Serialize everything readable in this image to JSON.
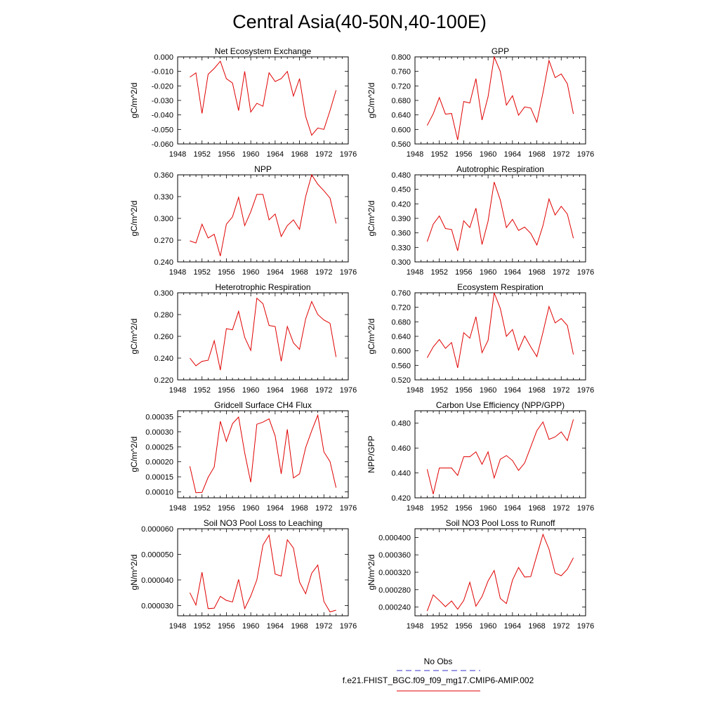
{
  "title": "Central Asia(40-50N,40-100E)",
  "x_ticks": [
    1948,
    1952,
    1956,
    1960,
    1964,
    1968,
    1972,
    1976
  ],
  "legend": [
    {
      "label": "No Obs",
      "color": "#3333cc",
      "dash": true
    },
    {
      "label": "f.e21.FHIST_BGC.f09_f09_mg17.CMIP6-AMIP.002",
      "color": "#e00000",
      "dash": false
    }
  ],
  "chart_data": [
    {
      "type": "line",
      "title": "Net Ecosystem Exchange",
      "ylabel": "gC/m^2/d",
      "xlim": [
        1948,
        1976
      ],
      "ylim": [
        -0.06,
        0.0
      ],
      "y_ticks": [
        "0.000",
        "-0.010",
        "-0.020",
        "-0.030",
        "-0.040",
        "-0.050",
        "-0.060"
      ],
      "y_tick_values": [
        0.0,
        -0.01,
        -0.02,
        -0.03,
        -0.04,
        -0.05,
        -0.06
      ],
      "series": [
        {
          "color": "#e00000",
          "x": [
            1950,
            1951,
            1952,
            1953,
            1954,
            1955,
            1956,
            1957,
            1958,
            1959,
            1960,
            1961,
            1962,
            1963,
            1964,
            1965,
            1966,
            1967,
            1968,
            1969,
            1970,
            1971,
            1972,
            1973,
            1974
          ],
          "y": [
            -0.014,
            -0.011,
            -0.039,
            -0.012,
            -0.008,
            -0.003,
            -0.015,
            -0.018,
            -0.037,
            -0.01,
            -0.038,
            -0.032,
            -0.034,
            -0.011,
            -0.017,
            -0.015,
            -0.01,
            -0.027,
            -0.015,
            -0.041,
            -0.054,
            -0.049,
            -0.05,
            -0.037,
            -0.023
          ]
        }
      ]
    },
    {
      "type": "line",
      "title": "GPP",
      "ylabel": "gC/m^2/d",
      "xlim": [
        1948,
        1976
      ],
      "ylim": [
        0.56,
        0.8
      ],
      "y_ticks": [
        "0.800",
        "0.760",
        "0.720",
        "0.680",
        "0.640",
        "0.600",
        "0.560"
      ],
      "y_tick_values": [
        0.8,
        0.76,
        0.72,
        0.68,
        0.64,
        0.6,
        0.56
      ],
      "series": [
        {
          "color": "#e00000",
          "x": [
            1950,
            1951,
            1952,
            1953,
            1954,
            1955,
            1956,
            1957,
            1958,
            1959,
            1960,
            1961,
            1962,
            1963,
            1964,
            1965,
            1966,
            1967,
            1968,
            1969,
            1970,
            1971,
            1972,
            1973,
            1974
          ],
          "y": [
            0.611,
            0.643,
            0.688,
            0.642,
            0.644,
            0.571,
            0.677,
            0.673,
            0.74,
            0.626,
            0.69,
            0.8,
            0.76,
            0.667,
            0.693,
            0.639,
            0.662,
            0.659,
            0.62,
            0.701,
            0.79,
            0.743,
            0.753,
            0.726,
            0.643
          ]
        }
      ]
    },
    {
      "type": "line",
      "title": "NPP",
      "ylabel": "gC/m^2/d",
      "xlim": [
        1948,
        1976
      ],
      "ylim": [
        0.24,
        0.36
      ],
      "y_ticks": [
        "0.360",
        "0.330",
        "0.300",
        "0.270",
        "0.240"
      ],
      "y_tick_values": [
        0.36,
        0.33,
        0.3,
        0.27,
        0.24
      ],
      "series": [
        {
          "color": "#e00000",
          "x": [
            1950,
            1951,
            1952,
            1953,
            1954,
            1955,
            1956,
            1957,
            1958,
            1959,
            1960,
            1961,
            1962,
            1963,
            1964,
            1965,
            1966,
            1967,
            1968,
            1969,
            1970,
            1971,
            1972,
            1973,
            1974
          ],
          "y": [
            0.269,
            0.266,
            0.292,
            0.273,
            0.278,
            0.248,
            0.292,
            0.302,
            0.329,
            0.29,
            0.309,
            0.333,
            0.333,
            0.298,
            0.306,
            0.275,
            0.29,
            0.298,
            0.285,
            0.33,
            0.36,
            0.347,
            0.338,
            0.328,
            0.293
          ]
        }
      ]
    },
    {
      "type": "line",
      "title": "Autotrophic Respiration",
      "ylabel": "gC/m^2/d",
      "xlim": [
        1948,
        1976
      ],
      "ylim": [
        0.3,
        0.48
      ],
      "y_ticks": [
        "0.480",
        "0.450",
        "0.420",
        "0.390",
        "0.360",
        "0.330",
        "0.300"
      ],
      "y_tick_values": [
        0.48,
        0.45,
        0.42,
        0.39,
        0.36,
        0.33,
        0.3
      ],
      "series": [
        {
          "color": "#e00000",
          "x": [
            1950,
            1951,
            1952,
            1953,
            1954,
            1955,
            1956,
            1957,
            1958,
            1959,
            1960,
            1961,
            1962,
            1963,
            1964,
            1965,
            1966,
            1967,
            1968,
            1969,
            1970,
            1971,
            1972,
            1973,
            1974
          ],
          "y": [
            0.342,
            0.378,
            0.395,
            0.369,
            0.367,
            0.323,
            0.385,
            0.371,
            0.411,
            0.336,
            0.384,
            0.465,
            0.428,
            0.371,
            0.388,
            0.365,
            0.372,
            0.359,
            0.335,
            0.375,
            0.43,
            0.397,
            0.415,
            0.399,
            0.349
          ]
        }
      ]
    },
    {
      "type": "line",
      "title": "Heterotrophic Respiration",
      "ylabel": "gC/m^2/d",
      "xlim": [
        1948,
        1976
      ],
      "ylim": [
        0.22,
        0.3
      ],
      "y_ticks": [
        "0.300",
        "0.280",
        "0.260",
        "0.240",
        "0.220"
      ],
      "y_tick_values": [
        0.3,
        0.28,
        0.26,
        0.24,
        0.22
      ],
      "series": [
        {
          "color": "#e00000",
          "x": [
            1950,
            1951,
            1952,
            1953,
            1954,
            1955,
            1956,
            1957,
            1958,
            1959,
            1960,
            1961,
            1962,
            1963,
            1964,
            1965,
            1966,
            1967,
            1968,
            1969,
            1970,
            1971,
            1972,
            1973,
            1974
          ],
          "y": [
            0.24,
            0.233,
            0.237,
            0.238,
            0.256,
            0.229,
            0.267,
            0.266,
            0.283,
            0.259,
            0.247,
            0.295,
            0.29,
            0.27,
            0.269,
            0.237,
            0.269,
            0.254,
            0.248,
            0.276,
            0.292,
            0.28,
            0.275,
            0.272,
            0.241
          ]
        }
      ]
    },
    {
      "type": "line",
      "title": "Ecosystem Respiration",
      "ylabel": "gC/m^2/d",
      "xlim": [
        1948,
        1976
      ],
      "ylim": [
        0.52,
        0.76
      ],
      "y_ticks": [
        "0.760",
        "0.720",
        "0.680",
        "0.640",
        "0.600",
        "0.560",
        "0.520"
      ],
      "y_tick_values": [
        0.76,
        0.72,
        0.68,
        0.64,
        0.6,
        0.56,
        0.52
      ],
      "series": [
        {
          "color": "#e00000",
          "x": [
            1950,
            1951,
            1952,
            1953,
            1954,
            1955,
            1956,
            1957,
            1958,
            1959,
            1960,
            1961,
            1962,
            1963,
            1964,
            1965,
            1966,
            1967,
            1968,
            1969,
            1970,
            1971,
            1972,
            1973,
            1974
          ],
          "y": [
            0.581,
            0.611,
            0.631,
            0.607,
            0.623,
            0.553,
            0.65,
            0.635,
            0.694,
            0.595,
            0.629,
            0.76,
            0.717,
            0.64,
            0.659,
            0.602,
            0.641,
            0.611,
            0.584,
            0.651,
            0.722,
            0.677,
            0.689,
            0.67,
            0.59
          ]
        }
      ]
    },
    {
      "type": "line",
      "title": "Gridcell Surface CH4 Flux",
      "ylabel": "gC/m^2/d",
      "xlim": [
        1948,
        1976
      ],
      "ylim": [
        8e-05,
        0.00037
      ],
      "y_ticks": [
        "0.00035",
        "0.00030",
        "0.00025",
        "0.00020",
        "0.00015",
        "0.00010"
      ],
      "y_tick_values": [
        0.00035,
        0.0003,
        0.00025,
        0.0002,
        0.00015,
        0.0001
      ],
      "series": [
        {
          "color": "#e00000",
          "x": [
            1950,
            1951,
            1952,
            1953,
            1954,
            1955,
            1956,
            1957,
            1958,
            1959,
            1960,
            1961,
            1962,
            1963,
            1964,
            1965,
            1966,
            1967,
            1968,
            1969,
            1970,
            1971,
            1972,
            1973,
            1974
          ],
          "y": [
            0.000185,
            9.7e-05,
            9.8e-05,
            0.000148,
            0.000183,
            0.000335,
            0.000268,
            0.000327,
            0.000349,
            0.00023,
            0.000132,
            0.000325,
            0.000332,
            0.000343,
            0.000286,
            0.00016,
            0.000308,
            0.000146,
            0.00016,
            0.000247,
            0.000303,
            0.000355,
            0.000233,
            0.000201,
            0.000114
          ]
        }
      ]
    },
    {
      "type": "line",
      "title": "Carbon Use Efficiency (NPP/GPP)",
      "ylabel": "NPP/GPP",
      "xlim": [
        1948,
        1976
      ],
      "ylim": [
        0.42,
        0.49
      ],
      "y_ticks": [
        "0.480",
        "0.460",
        "0.440",
        "0.420"
      ],
      "y_tick_values": [
        0.48,
        0.46,
        0.44,
        0.42
      ],
      "series": [
        {
          "color": "#e00000",
          "x": [
            1950,
            1951,
            1952,
            1953,
            1954,
            1955,
            1956,
            1957,
            1958,
            1959,
            1960,
            1961,
            1962,
            1963,
            1964,
            1965,
            1966,
            1967,
            1968,
            1969,
            1970,
            1971,
            1972,
            1973,
            1974
          ],
          "y": [
            0.443,
            0.423,
            0.444,
            0.444,
            0.444,
            0.438,
            0.453,
            0.453,
            0.457,
            0.447,
            0.457,
            0.436,
            0.451,
            0.454,
            0.45,
            0.442,
            0.448,
            0.461,
            0.474,
            0.481,
            0.467,
            0.469,
            0.473,
            0.466,
            0.483
          ]
        }
      ]
    },
    {
      "type": "line",
      "title": "Soil NO3 Pool Loss to Leaching",
      "ylabel": "gN/m^2/d",
      "xlim": [
        1948,
        1976
      ],
      "ylim": [
        2.6e-05,
        6e-05
      ],
      "y_ticks": [
        "0.000060",
        "0.000050",
        "0.000040",
        "0.000030"
      ],
      "y_tick_values": [
        6e-05,
        5e-05,
        4e-05,
        3e-05
      ],
      "series": [
        {
          "color": "#e00000",
          "x": [
            1950,
            1951,
            1952,
            1953,
            1954,
            1955,
            1956,
            1957,
            1958,
            1959,
            1960,
            1961,
            1962,
            1963,
            1964,
            1965,
            1966,
            1967,
            1968,
            1969,
            1970,
            1971,
            1972,
            1973,
            1974
          ],
          "y": [
            3.5e-05,
            3.02e-05,
            4.3e-05,
            2.88e-05,
            2.9e-05,
            3.36e-05,
            3.2e-05,
            3.14e-05,
            4.02e-05,
            2.88e-05,
            3.37e-05,
            4e-05,
            5.36e-05,
            5.75e-05,
            4.23e-05,
            4.15e-05,
            5.57e-05,
            5.25e-05,
            3.92e-05,
            3.46e-05,
            4.26e-05,
            4.58e-05,
            3.16e-05,
            2.75e-05,
            2.82e-05
          ]
        }
      ]
    },
    {
      "type": "line",
      "title": "Soil NO3 Pool Loss to Runoff",
      "ylabel": "gN/m^2/d",
      "xlim": [
        1948,
        1976
      ],
      "ylim": [
        0.00022,
        0.00042
      ],
      "y_ticks": [
        "0.000400",
        "0.000360",
        "0.000320",
        "0.000280",
        "0.000240"
      ],
      "y_tick_values": [
        0.0004,
        0.00036,
        0.00032,
        0.00028,
        0.00024
      ],
      "series": [
        {
          "color": "#e00000",
          "x": [
            1950,
            1951,
            1952,
            1953,
            1954,
            1955,
            1956,
            1957,
            1958,
            1959,
            1960,
            1961,
            1962,
            1963,
            1964,
            1965,
            1966,
            1967,
            1968,
            1969,
            1970,
            1971,
            1972,
            1973,
            1974
          ],
          "y": [
            0.000231,
            0.000268,
            0.000255,
            0.000241,
            0.000254,
            0.000235,
            0.000255,
            0.000297,
            0.000242,
            0.000264,
            0.0003,
            0.000324,
            0.00026,
            0.000248,
            0.000302,
            0.000331,
            0.000309,
            0.00031,
            0.000359,
            0.000407,
            0.000373,
            0.000318,
            0.000312,
            0.000327,
            0.000353
          ]
        }
      ]
    }
  ]
}
